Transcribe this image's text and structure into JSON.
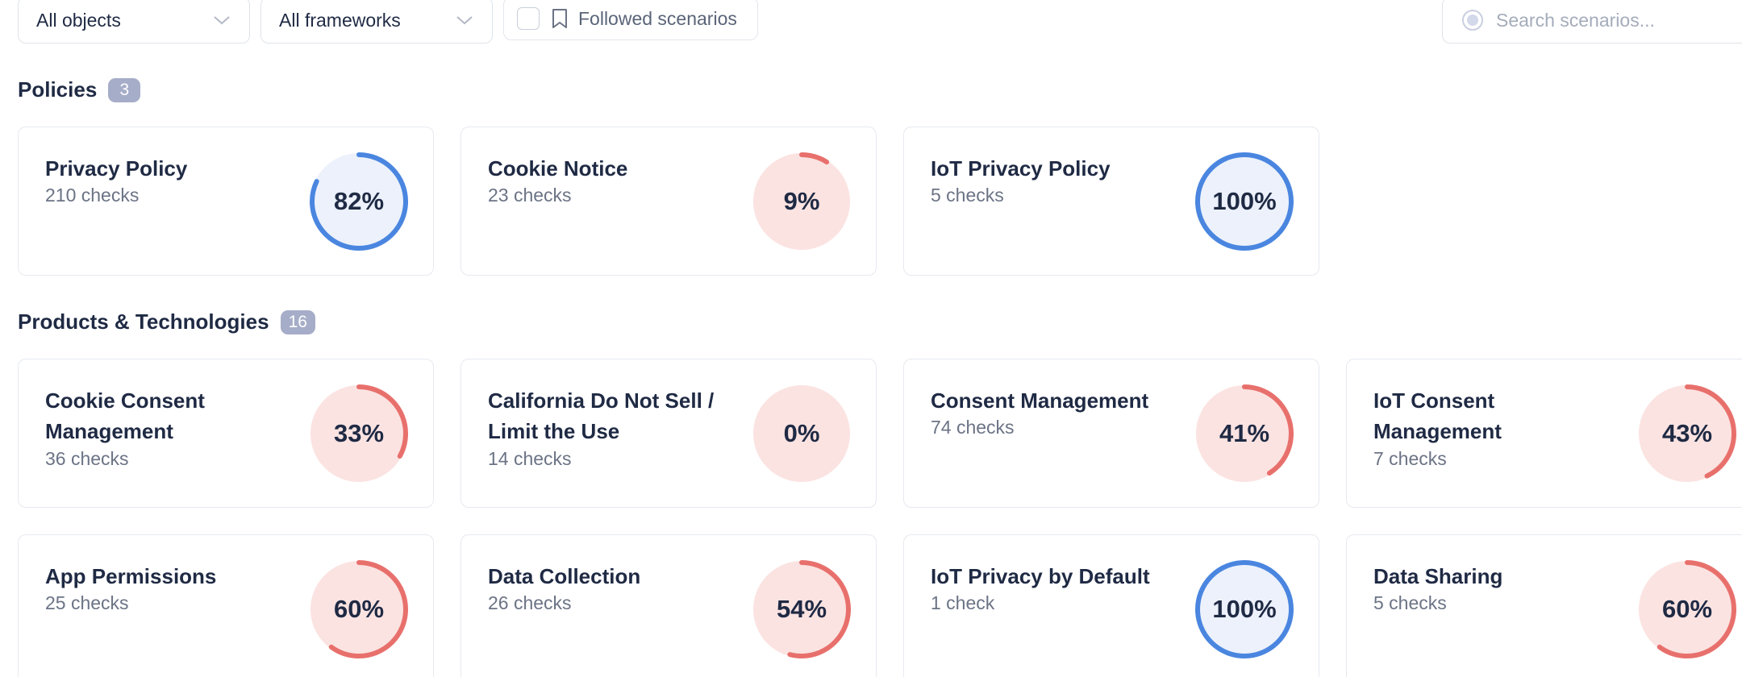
{
  "toolbar": {
    "objects_select": "All objects",
    "frameworks_select": "All frameworks",
    "followed_label": "Followed scenarios",
    "search_placeholder": "Search scenarios..."
  },
  "colors": {
    "good_ring": "#4a86e0",
    "good_fill": "#ecf1fb",
    "bad_ring": "#e8706c",
    "bad_fill": "#fbe3e1",
    "badge": "#a6adc8"
  },
  "sections": [
    {
      "title": "Policies",
      "count": "3",
      "cards": [
        {
          "title": "Privacy Policy",
          "checks": "210 checks",
          "percent_label": "82%",
          "percent": 82,
          "status": "good"
        },
        {
          "title": "Cookie Notice",
          "checks": "23 checks",
          "percent_label": "9%",
          "percent": 9,
          "status": "bad"
        },
        {
          "title": "IoT Privacy Policy",
          "checks": "5 checks",
          "percent_label": "100%",
          "percent": 100,
          "status": "good"
        }
      ]
    },
    {
      "title": "Products & Technologies",
      "count": "16",
      "cards": [
        {
          "title": "Cookie Consent Management",
          "checks": "36 checks",
          "percent_label": "33%",
          "percent": 33,
          "status": "bad"
        },
        {
          "title": "California Do Not Sell / Limit the Use",
          "checks": "14 checks",
          "percent_label": "0%",
          "percent": 0,
          "status": "bad"
        },
        {
          "title": "Consent Management",
          "checks": "74 checks",
          "percent_label": "41%",
          "percent": 41,
          "status": "bad"
        },
        {
          "title": "IoT Consent Management",
          "checks": "7 checks",
          "percent_label": "43%",
          "percent": 43,
          "status": "bad"
        },
        {
          "title": "App Permissions",
          "checks": "25 checks",
          "percent_label": "60%",
          "percent": 60,
          "status": "bad"
        },
        {
          "title": "Data Collection",
          "checks": "26 checks",
          "percent_label": "54%",
          "percent": 54,
          "status": "bad"
        },
        {
          "title": "IoT Privacy by Default",
          "checks": "1 check",
          "percent_label": "100%",
          "percent": 100,
          "status": "good"
        },
        {
          "title": "Data Sharing",
          "checks": "5 checks",
          "percent_label": "60%",
          "percent": 60,
          "status": "bad"
        }
      ]
    }
  ]
}
